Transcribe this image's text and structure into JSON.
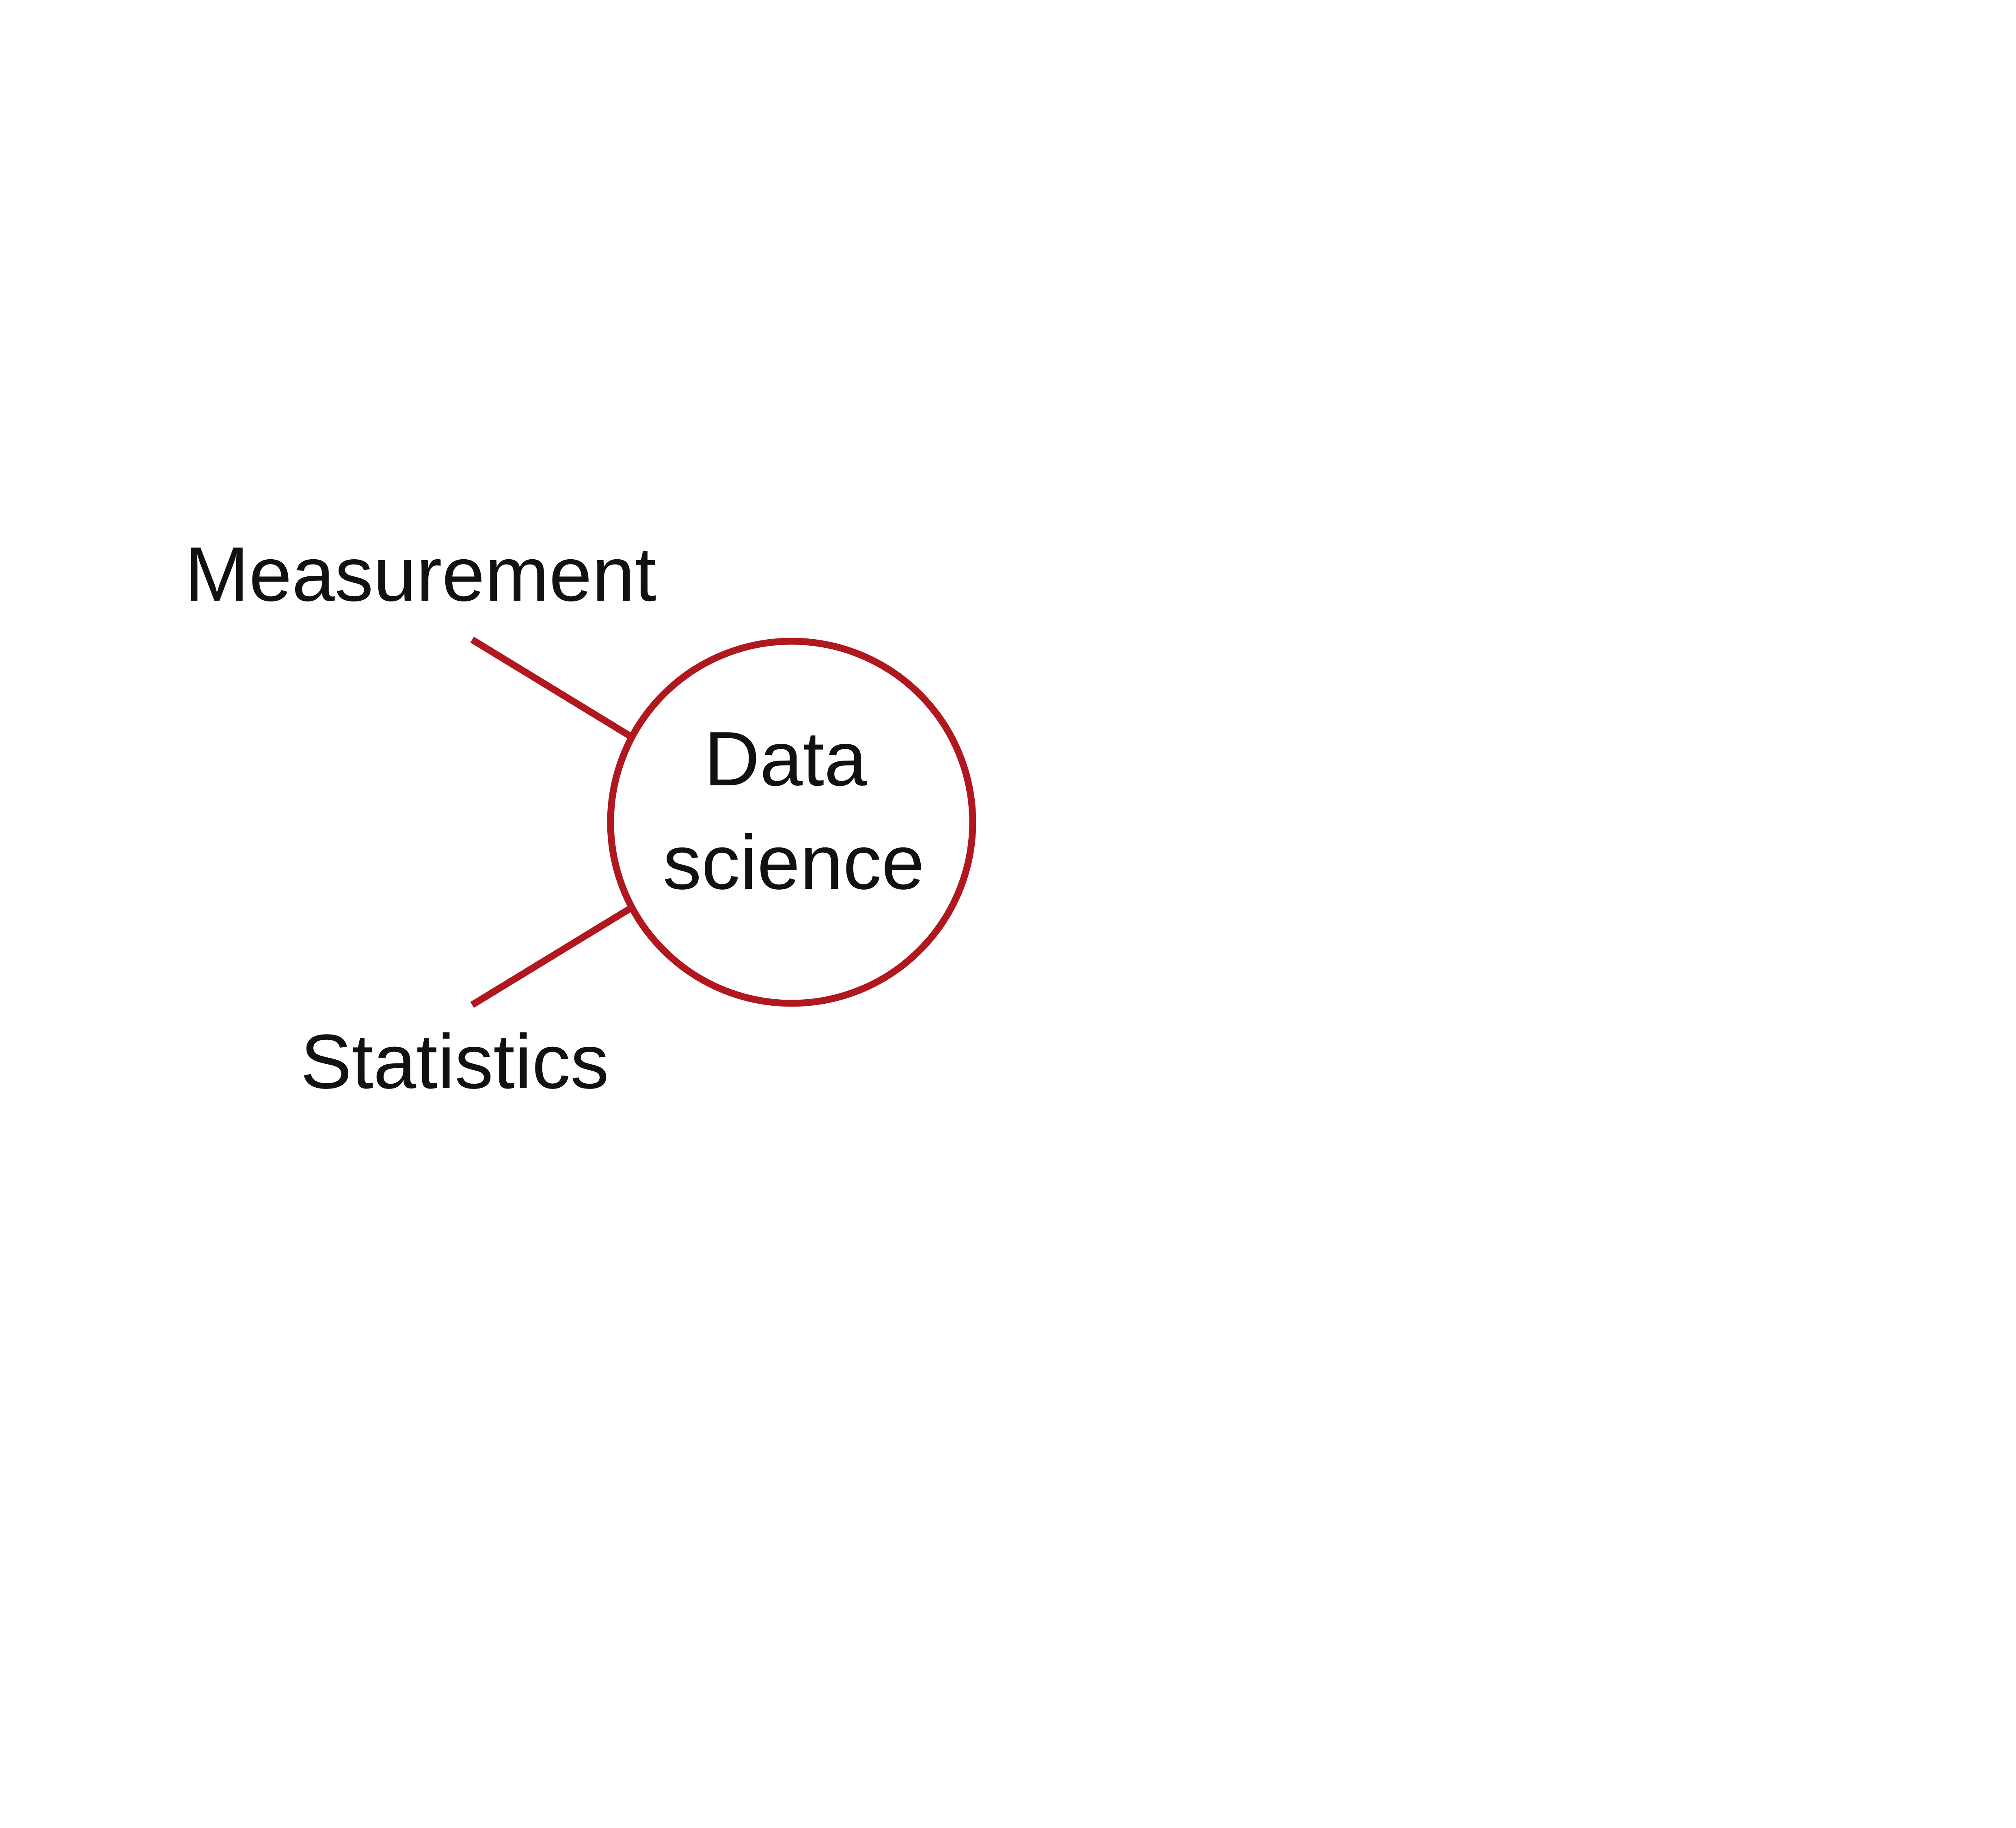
{
  "diagram": {
    "center": {
      "lines": [
        "Data",
        "science"
      ]
    },
    "nodes": [
      {
        "label": "Measurement"
      },
      {
        "label": "Statistics"
      }
    ],
    "colors": {
      "accent": "#b0171f",
      "text": "#111111",
      "background": "#ffffff"
    }
  }
}
